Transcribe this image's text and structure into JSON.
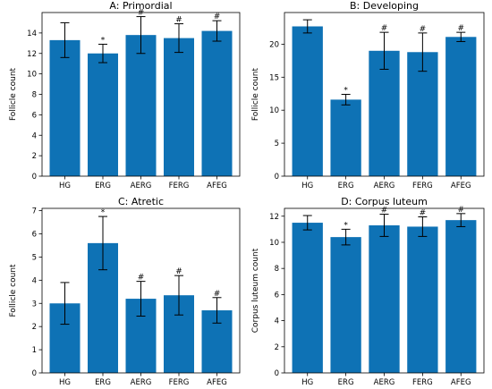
{
  "chart_data": [
    {
      "type": "bar",
      "title": "A: Primordial",
      "ylabel": "Follicle count",
      "xlabel": "",
      "categories": [
        "HG",
        "ERG",
        "AERG",
        "FERG",
        "AFEG"
      ],
      "values": [
        13.3,
        12.0,
        13.8,
        13.5,
        14.2
      ],
      "errors": [
        1.7,
        0.9,
        1.8,
        1.4,
        1.0
      ],
      "markers": [
        "",
        "*",
        "#",
        "#",
        "#"
      ],
      "ylim": [
        0,
        16
      ],
      "yticks": [
        "0",
        "2",
        "4",
        "6",
        "8",
        "10",
        "12",
        "14"
      ],
      "color": "#0e72b5",
      "grid": false
    },
    {
      "type": "bar",
      "title": "B: Developing",
      "ylabel": "Follicle count",
      "xlabel": "",
      "categories": [
        "HG",
        "ERG",
        "AERG",
        "FERG",
        "AFEG"
      ],
      "values": [
        22.7,
        11.6,
        19.0,
        18.8,
        21.1
      ],
      "errors": [
        1.0,
        0.8,
        2.8,
        2.9,
        0.7
      ],
      "markers": [
        "",
        "*",
        "#",
        "#",
        "#"
      ],
      "ylim": [
        0,
        24.8
      ],
      "yticks": [
        "0",
        "5",
        "10",
        "15",
        "20"
      ],
      "color": "#0e72b5",
      "grid": false
    },
    {
      "type": "bar",
      "title": "C: Atretic",
      "ylabel": "Follicle count",
      "xlabel": "",
      "categories": [
        "HG",
        "ERG",
        "AERG",
        "FERG",
        "AFEG"
      ],
      "values": [
        3.0,
        5.6,
        3.2,
        3.35,
        2.7
      ],
      "errors": [
        0.9,
        1.15,
        0.75,
        0.85,
        0.55
      ],
      "markers": [
        "",
        "*",
        "#",
        "#",
        "#"
      ],
      "ylim": [
        0,
        7.1
      ],
      "yticks": [
        "0",
        "1",
        "2",
        "3",
        "4",
        "5",
        "6",
        "7"
      ],
      "color": "#0e72b5",
      "grid": false
    },
    {
      "type": "bar",
      "title": "D: Corpus luteum",
      "ylabel": "Corpus luteum count",
      "xlabel": "",
      "categories": [
        "HG",
        "ERG",
        "AERG",
        "FERG",
        "AFEG"
      ],
      "values": [
        11.5,
        10.4,
        11.3,
        11.2,
        11.7
      ],
      "errors": [
        0.55,
        0.6,
        0.85,
        0.75,
        0.5
      ],
      "markers": [
        "",
        "*",
        "#",
        "#",
        "#"
      ],
      "ylim": [
        0,
        12.6
      ],
      "yticks": [
        "0",
        "2",
        "4",
        "6",
        "8",
        "10",
        "12"
      ],
      "color": "#0e72b5",
      "grid": false
    }
  ]
}
